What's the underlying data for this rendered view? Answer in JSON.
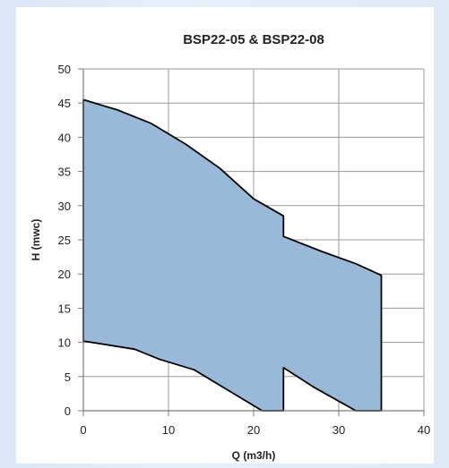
{
  "chart_data": {
    "type": "area",
    "title": "BSP22-05 & BSP22-08",
    "xlabel": "Q (m3/h)",
    "ylabel": "H (mwc)",
    "xlim": [
      0,
      40
    ],
    "ylim": [
      0,
      50
    ],
    "xticks": [
      0,
      10,
      20,
      30,
      40
    ],
    "yticks": [
      0,
      5,
      10,
      15,
      20,
      25,
      30,
      35,
      40,
      45,
      50
    ],
    "grid": true,
    "legend": "none",
    "series": [
      {
        "upper_boundary": [
          [
            0,
            45.5
          ],
          [
            4,
            44
          ],
          [
            8,
            42
          ],
          [
            12,
            39
          ],
          [
            16,
            35.5
          ],
          [
            20,
            31
          ],
          [
            23.5,
            28.5
          ],
          [
            23.5,
            25.5
          ],
          [
            28,
            23.3
          ],
          [
            32,
            21.5
          ],
          [
            35,
            19.8
          ]
        ],
        "lower_boundary": [
          [
            0,
            10.2
          ],
          [
            6,
            9
          ],
          [
            9,
            7.5
          ],
          [
            13,
            6
          ],
          [
            17,
            3
          ],
          [
            21,
            0
          ],
          [
            23.5,
            0
          ],
          [
            23.5,
            6.3
          ],
          [
            27,
            3.5
          ],
          [
            32,
            0
          ],
          [
            35,
            0
          ]
        ]
      }
    ],
    "colors": {
      "fill": "#9ab9d9",
      "stroke": "#000000",
      "grid": "#9a9a9a",
      "axis": "#7a7a7a"
    }
  }
}
